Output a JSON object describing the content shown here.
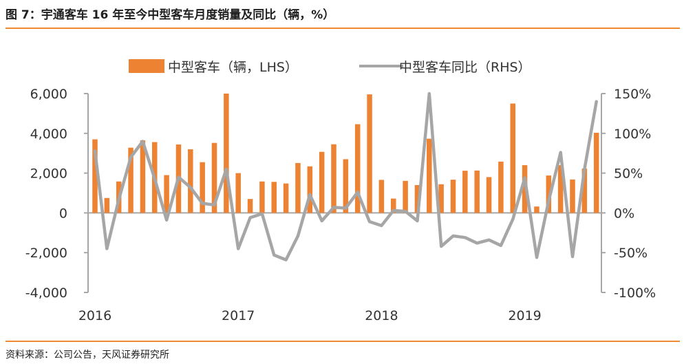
{
  "header": {
    "title": "图 7：宇通客车 16 年至今中型客车月度销量及同比（辆，%）"
  },
  "footer": {
    "source": "资料来源：公司公告，天风证券研究所"
  },
  "colors": {
    "accent": "#f08a32",
    "bar": "#ee8233",
    "line": "#a6a6a6",
    "axis": "#a6a6a6"
  },
  "chart_data": {
    "type": "bar",
    "title": "图 7：宇通客车 16 年至今中型客车月度销量及同比（辆，%）",
    "x_tick_labels": [
      "2016",
      "2017",
      "2018",
      "2019"
    ],
    "x_tick_month_index": [
      0,
      12,
      24,
      36
    ],
    "legend": {
      "bar_label": "中型客车（辆，LHS）",
      "line_label": "中型客车同比（RHS）",
      "placement": "top"
    },
    "y_left": {
      "ticks": [
        6000,
        4000,
        2000,
        0,
        -2000,
        -4000
      ],
      "tick_labels": [
        "6,000",
        "4,000",
        "2,000",
        "0",
        "-2,000",
        "-4,000"
      ],
      "ylim": [
        -4000,
        6000
      ]
    },
    "y_right": {
      "ticks": [
        150,
        100,
        50,
        0,
        -50,
        -100
      ],
      "tick_labels": [
        "150%",
        "100%",
        "50%",
        "0%",
        "-50%",
        "-100%"
      ],
      "ylim": [
        -100,
        150
      ]
    },
    "series": [
      {
        "name": "中型客车（辆，LHS）",
        "type": "bar",
        "axis": "left",
        "values": [
          3700,
          750,
          1580,
          3280,
          3650,
          3560,
          1900,
          3440,
          3200,
          2550,
          3520,
          6000,
          2000,
          700,
          1580,
          1560,
          1480,
          2510,
          2340,
          3070,
          3450,
          2700,
          4460,
          5960,
          1660,
          720,
          1610,
          1400,
          3730,
          1440,
          1670,
          2120,
          2130,
          1800,
          2580,
          5500,
          2400,
          320,
          1880,
          2400,
          1680,
          2230,
          4030
        ]
      },
      {
        "name": "中型客车同比（RHS）",
        "type": "line",
        "axis": "right",
        "values": [
          78,
          -45,
          17,
          70,
          90,
          43,
          -9,
          45,
          32,
          12,
          10,
          55,
          -45,
          -6,
          -1,
          -53,
          -59,
          -29,
          23,
          -10,
          7,
          6,
          26,
          -11,
          -16,
          3,
          2,
          -10,
          150,
          -42,
          -29,
          -31,
          -38,
          -34,
          -41,
          -8,
          44,
          -56,
          15,
          76,
          -55,
          55,
          140
        ]
      }
    ]
  }
}
